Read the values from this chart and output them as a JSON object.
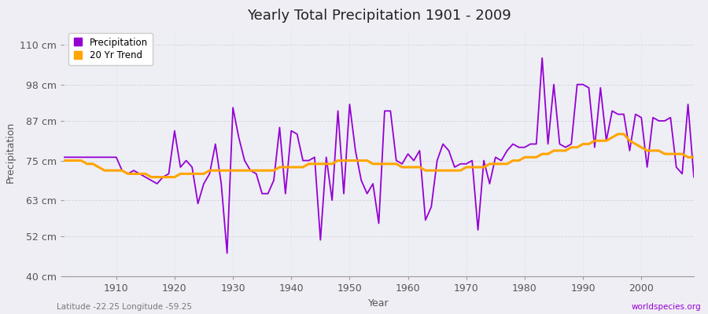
{
  "title": "Yearly Total Precipitation 1901 - 2009",
  "xlabel": "Year",
  "ylabel": "Precipitation",
  "footnote_left": "Latitude -22.25 Longitude -59.25",
  "footnote_right": "worldspecies.org",
  "ylim": [
    40,
    115
  ],
  "yticks": [
    40,
    52,
    63,
    75,
    87,
    98,
    110
  ],
  "ytick_labels": [
    "40 cm",
    "52 cm",
    "63 cm",
    "75 cm",
    "87 cm",
    "98 cm",
    "110 cm"
  ],
  "xlim": [
    1901,
    2009
  ],
  "xticks": [
    1910,
    1920,
    1930,
    1940,
    1950,
    1960,
    1970,
    1980,
    1990,
    2000
  ],
  "precipitation_color": "#9400D3",
  "trend_color": "#FFA500",
  "bg_color": "#F0EEF5",
  "plot_bg_color": "#EEEEF5",
  "legend_bg": "#FFFFFF",
  "years": [
    1901,
    1902,
    1903,
    1904,
    1905,
    1906,
    1907,
    1908,
    1909,
    1910,
    1911,
    1912,
    1913,
    1914,
    1915,
    1916,
    1917,
    1918,
    1919,
    1920,
    1921,
    1922,
    1923,
    1924,
    1925,
    1926,
    1927,
    1928,
    1929,
    1930,
    1931,
    1932,
    1933,
    1934,
    1935,
    1936,
    1937,
    1938,
    1939,
    1940,
    1941,
    1942,
    1943,
    1944,
    1945,
    1946,
    1947,
    1948,
    1949,
    1950,
    1951,
    1952,
    1953,
    1954,
    1955,
    1956,
    1957,
    1958,
    1959,
    1960,
    1961,
    1962,
    1963,
    1964,
    1965,
    1966,
    1967,
    1968,
    1969,
    1970,
    1971,
    1972,
    1973,
    1974,
    1975,
    1976,
    1977,
    1978,
    1979,
    1980,
    1981,
    1982,
    1983,
    1984,
    1985,
    1986,
    1987,
    1988,
    1989,
    1990,
    1991,
    1992,
    1993,
    1994,
    1995,
    1996,
    1997,
    1998,
    1999,
    2000,
    2001,
    2002,
    2003,
    2004,
    2005,
    2006,
    2007,
    2008,
    2009
  ],
  "precip": [
    76,
    76,
    76,
    76,
    76,
    76,
    76,
    76,
    76,
    76,
    72,
    71,
    72,
    71,
    70,
    69,
    68,
    70,
    71,
    84,
    73,
    75,
    73,
    62,
    68,
    71,
    80,
    68,
    47,
    91,
    82,
    75,
    72,
    71,
    65,
    65,
    69,
    85,
    65,
    84,
    83,
    75,
    75,
    76,
    51,
    76,
    63,
    90,
    65,
    92,
    78,
    69,
    65,
    68,
    56,
    90,
    90,
    75,
    74,
    77,
    75,
    78,
    57,
    61,
    75,
    80,
    78,
    73,
    74,
    74,
    75,
    54,
    75,
    68,
    76,
    75,
    78,
    80,
    79,
    79,
    80,
    80,
    106,
    80,
    98,
    80,
    79,
    80,
    98,
    98,
    97,
    79,
    97,
    81,
    90,
    89,
    89,
    78,
    89,
    88,
    73,
    88,
    87,
    87,
    88,
    73,
    71,
    92,
    70
  ],
  "trend": [
    75,
    75,
    75,
    75,
    74,
    74,
    73,
    72,
    72,
    72,
    72,
    71,
    71,
    71,
    71,
    70,
    70,
    70,
    70,
    70,
    71,
    71,
    71,
    71,
    71,
    72,
    72,
    72,
    72,
    72,
    72,
    72,
    72,
    72,
    72,
    72,
    72,
    73,
    73,
    73,
    73,
    73,
    74,
    74,
    74,
    74,
    74,
    75,
    75,
    75,
    75,
    75,
    75,
    74,
    74,
    74,
    74,
    74,
    73,
    73,
    73,
    73,
    72,
    72,
    72,
    72,
    72,
    72,
    72,
    73,
    73,
    73,
    73,
    74,
    74,
    74,
    74,
    75,
    75,
    76,
    76,
    76,
    77,
    77,
    78,
    78,
    78,
    79,
    79,
    80,
    80,
    81,
    81,
    81,
    82,
    83,
    83,
    81,
    80,
    79,
    78,
    78,
    78,
    77,
    77,
    77,
    77,
    76,
    76
  ]
}
